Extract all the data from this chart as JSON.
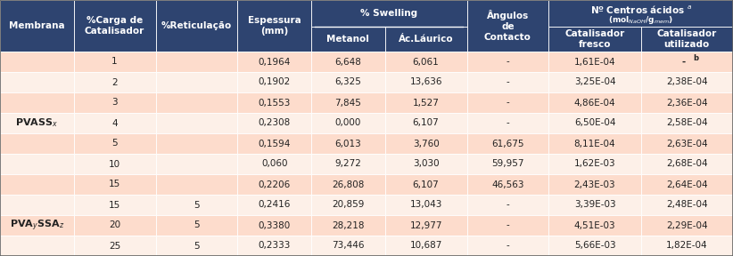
{
  "header_bg": "#2E4470",
  "header_fg": "#FFFFFF",
  "row_bg_odd": "#FDDCCC",
  "row_bg_even": "#FDF0E8",
  "border_color": "#AAAAAA",
  "rows": [
    [
      "",
      "1",
      "",
      "0,1964",
      "6,648",
      "6,061",
      "-",
      "1,61E-04",
      "- b"
    ],
    [
      "",
      "2",
      "",
      "0,1902",
      "6,325",
      "13,636",
      "-",
      "3,25E-04",
      "2,38E-04"
    ],
    [
      "",
      "3",
      "",
      "0,1553",
      "7,845",
      "1,527",
      "-",
      "4,86E-04",
      "2,36E-04"
    ],
    [
      "",
      "4",
      "",
      "0,2308",
      "0,000",
      "6,107",
      "-",
      "6,50E-04",
      "2,58E-04"
    ],
    [
      "",
      "5",
      "",
      "0,1594",
      "6,013",
      "3,760",
      "61,675",
      "8,11E-04",
      "2,63E-04"
    ],
    [
      "",
      "10",
      "",
      "0,060",
      "9,272",
      "3,030",
      "59,957",
      "1,62E-03",
      "2,68E-04"
    ],
    [
      "",
      "15",
      "",
      "0,2206",
      "26,808",
      "6,107",
      "46,563",
      "2,43E-03",
      "2,64E-04"
    ],
    [
      "",
      "15",
      "5",
      "0,2416",
      "20,859",
      "13,043",
      "-",
      "3,39E-03",
      "2,48E-04"
    ],
    [
      "",
      "20",
      "5",
      "0,3380",
      "28,218",
      "12,977",
      "-",
      "4,51E-03",
      "2,29E-04"
    ],
    [
      "",
      "25",
      "5",
      "0,2333",
      "73,446",
      "10,687",
      "-",
      "5,66E-03",
      "1,82E-04"
    ]
  ]
}
